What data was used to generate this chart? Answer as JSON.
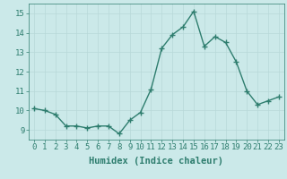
{
  "x": [
    0,
    1,
    2,
    3,
    4,
    5,
    6,
    7,
    8,
    9,
    10,
    11,
    12,
    13,
    14,
    15,
    16,
    17,
    18,
    19,
    20,
    21,
    22,
    23
  ],
  "y": [
    10.1,
    10.0,
    9.8,
    9.2,
    9.2,
    9.1,
    9.2,
    9.2,
    8.8,
    9.5,
    9.9,
    11.1,
    13.2,
    13.9,
    14.3,
    15.1,
    13.3,
    13.8,
    13.5,
    12.5,
    11.0,
    10.3,
    10.5,
    10.7
  ],
  "line_color": "#2E7D6E",
  "marker": "+",
  "marker_size": 4,
  "bg_color": "#CBE9E9",
  "grid_color": "#B8D8D8",
  "xlabel": "Humidex (Indice chaleur)",
  "ylim": [
    8.5,
    15.5
  ],
  "xlim": [
    -0.5,
    23.5
  ],
  "yticks": [
    9,
    10,
    11,
    12,
    13,
    14,
    15
  ],
  "xticks": [
    0,
    1,
    2,
    3,
    4,
    5,
    6,
    7,
    8,
    9,
    10,
    11,
    12,
    13,
    14,
    15,
    16,
    17,
    18,
    19,
    20,
    21,
    22,
    23
  ],
  "tick_fontsize": 6.5,
  "xlabel_fontsize": 7.5,
  "linewidth": 1.0
}
